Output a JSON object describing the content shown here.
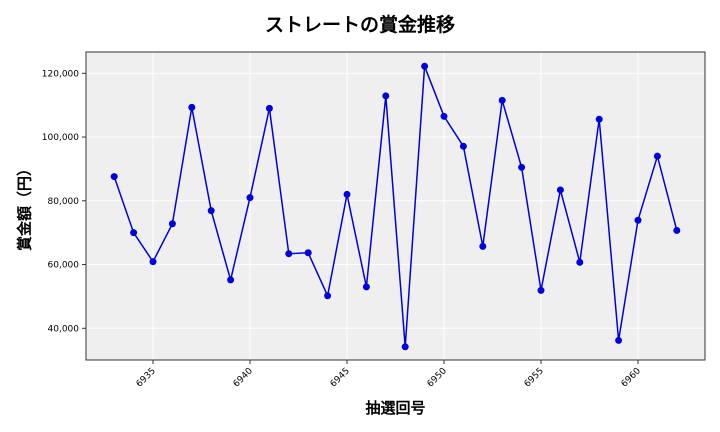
{
  "chart_data": {
    "type": "line",
    "title": "ストレートの賞金推移",
    "xlabel": "抽選回号",
    "ylabel": "賞金額（円）",
    "x": [
      6933,
      6934,
      6935,
      6936,
      6937,
      6938,
      6939,
      6940,
      6941,
      6942,
      6943,
      6944,
      6945,
      6946,
      6947,
      6948,
      6949,
      6950,
      6951,
      6952,
      6953,
      6954,
      6955,
      6956,
      6957,
      6958,
      6959,
      6960,
      6961,
      6962
    ],
    "series": [
      {
        "name": "ストレート",
        "color": "#0000dd",
        "marker": "circle",
        "values": [
          87600,
          70000,
          60900,
          72800,
          109300,
          76900,
          55200,
          81000,
          109000,
          63400,
          63700,
          50200,
          82000,
          53000,
          112900,
          34200,
          122200,
          106500,
          97100,
          65700,
          111500,
          90500,
          51900,
          83400,
          60700,
          105600,
          36200,
          73900,
          94000,
          70700
        ]
      }
    ],
    "xticks": [
      6935,
      6940,
      6945,
      6950,
      6955,
      6960
    ],
    "xtick_labels": [
      "6935",
      "6940",
      "6945",
      "6950",
      "6955",
      "6960"
    ],
    "yticks": [
      40000,
      60000,
      80000,
      100000,
      120000
    ],
    "ytick_labels": [
      "40,000",
      "60,000",
      "80,000",
      "100,000",
      "120,000"
    ],
    "xlim": [
      6932,
      6963
    ],
    "ylim": [
      29500,
      126800
    ],
    "grid": true,
    "legend": "none",
    "background": "#efefef"
  }
}
